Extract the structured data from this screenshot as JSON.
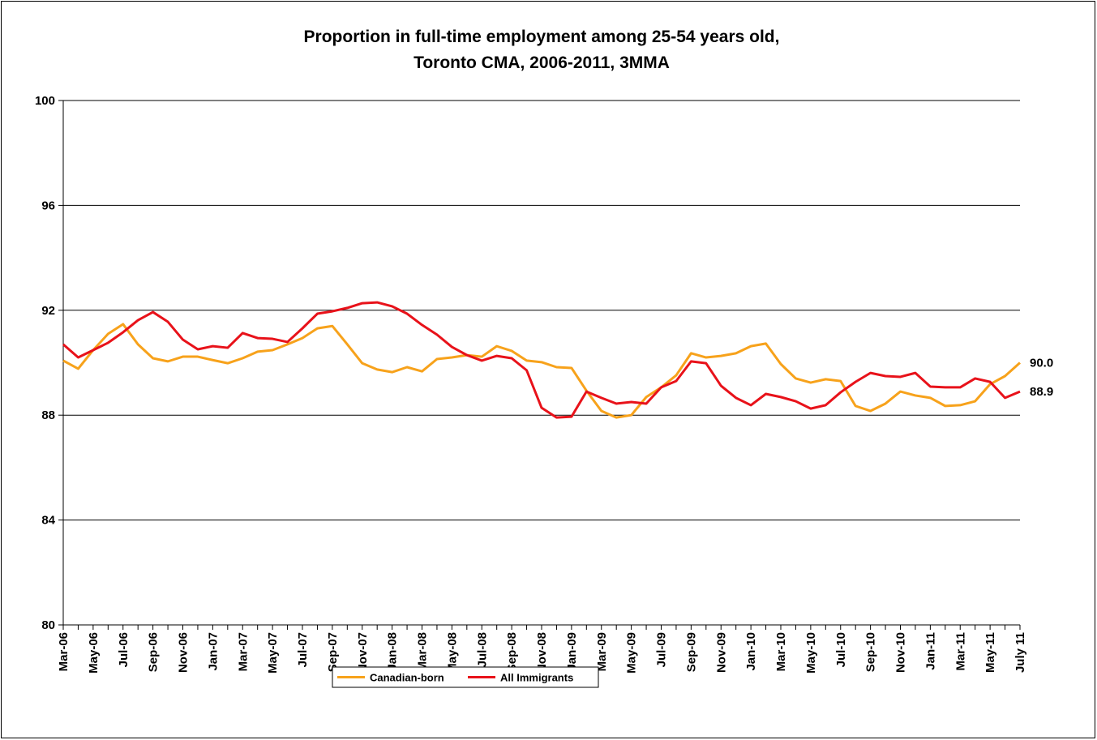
{
  "chart_data": {
    "type": "line",
    "title": [
      "Proportion in full-time employment among 25-54 years old,",
      "Toronto CMA, 2006-2011, 3MMA"
    ],
    "categories": [
      "Mar-06",
      null,
      "May-06",
      null,
      "Jul-06",
      null,
      "Sep-06",
      null,
      "Nov-06",
      null,
      "Jan-07",
      null,
      "Mar-07",
      null,
      "May-07",
      null,
      "Jul-07",
      null,
      "Sep-07",
      null,
      "Nov-07",
      null,
      "Jan-08",
      null,
      "Mar-08",
      null,
      "May-08",
      null,
      "Jul-08",
      null,
      "Sep-08",
      null,
      "Nov-08",
      null,
      "Jan-09",
      null,
      "Mar-09",
      null,
      "May-09",
      null,
      "Jul-09",
      null,
      "Sep-09",
      null,
      "Nov-09",
      null,
      "Jan-10",
      null,
      "Mar-10",
      null,
      "May-10",
      null,
      "Jul-10",
      null,
      "Sep-10",
      null,
      "Nov-10",
      null,
      "Jan-11",
      null,
      "Mar-11",
      null,
      "May-11",
      null,
      "July 11"
    ],
    "series": [
      {
        "name": "Canadian-born",
        "color": "#f7a21b",
        "values": [
          90.08,
          89.77,
          90.48,
          91.1,
          91.47,
          90.7,
          90.17,
          90.05,
          90.23,
          90.23,
          90.1,
          89.98,
          90.17,
          90.42,
          90.48,
          90.7,
          90.94,
          91.31,
          91.4,
          90.7,
          89.98,
          89.74,
          89.64,
          89.83,
          89.67,
          90.14,
          90.2,
          90.29,
          90.23,
          90.63,
          90.45,
          90.08,
          90.02,
          89.83,
          89.8,
          88.93,
          88.16,
          87.91,
          88.0,
          88.69,
          89.06,
          89.52,
          90.36,
          90.2,
          90.26,
          90.36,
          90.63,
          90.73,
          89.95,
          89.4,
          89.24,
          89.37,
          89.3,
          88.35,
          88.16,
          88.44,
          88.9,
          88.75,
          88.66,
          88.35,
          88.38,
          88.53,
          89.18,
          89.49,
          90.0
        ],
        "value_labels": [
          null,
          null,
          null,
          null,
          null,
          null,
          null,
          null,
          null,
          null,
          null,
          null,
          null,
          null,
          null,
          null,
          null,
          null,
          null,
          null,
          null,
          null,
          null,
          null,
          null,
          null,
          null,
          null,
          null,
          null,
          null,
          null,
          null,
          null,
          null,
          null,
          null,
          null,
          null,
          null,
          null,
          null,
          null,
          null,
          null,
          null,
          null,
          null,
          null,
          null,
          null,
          null,
          null,
          null,
          null,
          null,
          null,
          null,
          null,
          null,
          null,
          null,
          null,
          null,
          "90.0"
        ]
      },
      {
        "name": "All Immigrants",
        "color": "#e8121a",
        "values": [
          90.7,
          90.2,
          90.48,
          90.76,
          91.16,
          91.62,
          91.93,
          91.56,
          90.88,
          90.51,
          90.63,
          90.57,
          91.13,
          90.94,
          90.91,
          90.79,
          91.31,
          91.87,
          91.96,
          92.09,
          92.27,
          92.3,
          92.15,
          91.87,
          91.44,
          91.07,
          90.6,
          90.29,
          90.08,
          90.26,
          90.17,
          89.71,
          88.28,
          87.91,
          87.94,
          88.9,
          88.66,
          88.44,
          88.5,
          88.44,
          89.06,
          89.3,
          90.05,
          89.98,
          89.12,
          88.66,
          88.38,
          88.81,
          88.69,
          88.53,
          88.25,
          88.38,
          88.87,
          89.27,
          89.61,
          89.49,
          89.46,
          89.61,
          89.09,
          89.06,
          89.06,
          89.4,
          89.27,
          88.66,
          88.9
        ],
        "value_labels": [
          null,
          null,
          null,
          null,
          null,
          null,
          null,
          null,
          null,
          null,
          null,
          null,
          null,
          null,
          null,
          null,
          null,
          null,
          null,
          null,
          null,
          null,
          null,
          null,
          null,
          null,
          null,
          null,
          null,
          null,
          null,
          null,
          null,
          null,
          null,
          null,
          null,
          null,
          null,
          null,
          null,
          null,
          null,
          null,
          null,
          null,
          null,
          null,
          null,
          null,
          null,
          null,
          null,
          null,
          null,
          null,
          null,
          null,
          null,
          null,
          null,
          null,
          null,
          null,
          "88.9"
        ]
      }
    ],
    "ylim": [
      80,
      100
    ],
    "yticks": [
      80,
      84,
      88,
      92,
      96,
      100
    ],
    "grid": true,
    "legend": "bottom"
  }
}
